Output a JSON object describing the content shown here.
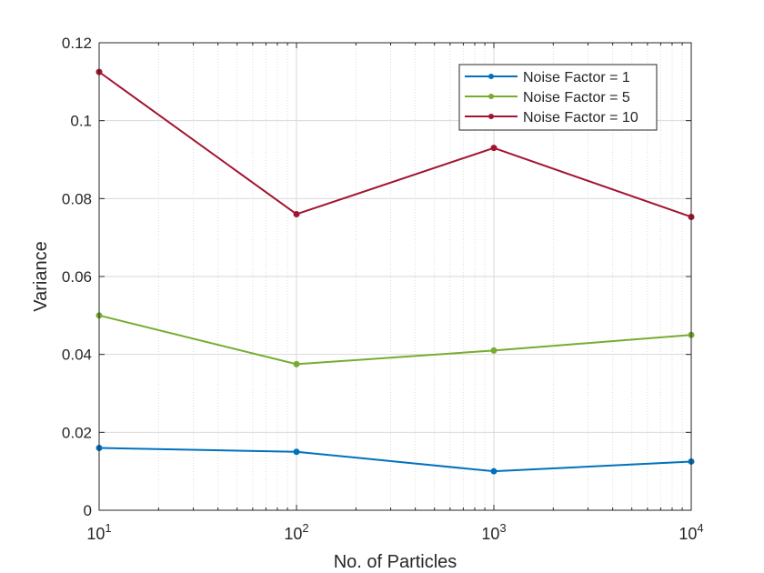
{
  "chart_data": {
    "type": "line",
    "title": "",
    "xlabel": "No. of Particles",
    "ylabel": "Variance",
    "xscale": "log",
    "x": [
      10,
      100,
      1000,
      10000
    ],
    "xlim": [
      10,
      10000
    ],
    "ylim": [
      0,
      0.12
    ],
    "xticks": [
      10,
      100,
      1000,
      10000
    ],
    "xtick_labels": [
      {
        "base": "10",
        "exp": "1"
      },
      {
        "base": "10",
        "exp": "2"
      },
      {
        "base": "10",
        "exp": "3"
      },
      {
        "base": "10",
        "exp": "4"
      }
    ],
    "yticks": [
      0,
      0.02,
      0.04,
      0.06,
      0.08,
      0.1,
      0.12
    ],
    "ytick_labels": [
      "0",
      "0.02",
      "0.04",
      "0.06",
      "0.08",
      "0.1",
      "0.12"
    ],
    "grid": true,
    "minor_grid": true,
    "legend_position": "top-right",
    "series": [
      {
        "name": "Noise Factor = 1",
        "color": "#0072BD",
        "values": [
          0.016,
          0.015,
          0.01,
          0.0125
        ]
      },
      {
        "name": "Noise Factor = 5",
        "color": "#77AC30",
        "values": [
          0.05,
          0.0375,
          0.041,
          0.045
        ]
      },
      {
        "name": "Noise Factor = 10",
        "color": "#A2142F",
        "values": [
          0.1125,
          0.076,
          0.093,
          0.0753
        ]
      }
    ]
  }
}
